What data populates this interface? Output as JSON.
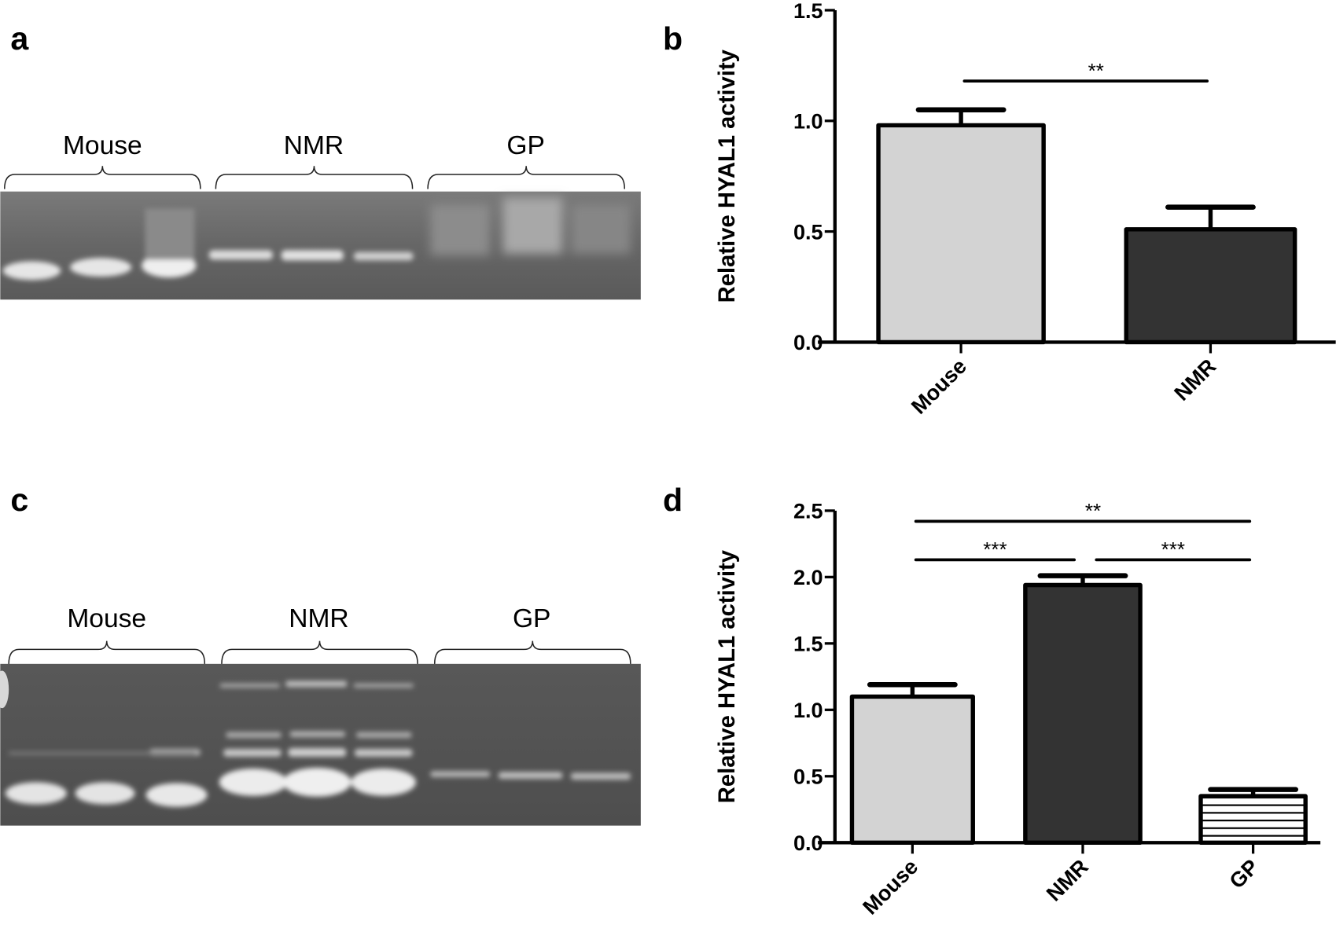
{
  "panels": {
    "a": {
      "label": "a",
      "groups": [
        "Mouse",
        "NMR",
        "GP"
      ]
    },
    "b": {
      "label": "b"
    },
    "c": {
      "label": "c",
      "groups": [
        "Mouse",
        "NMR",
        "GP"
      ]
    },
    "d": {
      "label": "d"
    }
  },
  "chart_data": [
    {
      "panel": "b",
      "type": "bar",
      "title": "",
      "xlabel": "",
      "ylabel": "Relative HYAL1 activity",
      "ylim": [
        0,
        1.5
      ],
      "yticks": [
        "0.0",
        "0.5",
        "1.0",
        "1.5"
      ],
      "categories": [
        "Mouse",
        "NMR"
      ],
      "values": [
        0.98,
        0.51
      ],
      "errors": [
        0.07,
        0.1
      ],
      "fills": [
        "#d3d3d3",
        "#333333"
      ],
      "patterns": [
        "solid",
        "solid"
      ],
      "significance": [
        {
          "from": "Mouse",
          "to": "NMR",
          "label": "**",
          "y": 1.18
        }
      ]
    },
    {
      "panel": "d",
      "type": "bar",
      "title": "",
      "xlabel": "",
      "ylabel": "Relative HYAL1 activity",
      "ylim": [
        0,
        2.5
      ],
      "yticks": [
        "0.0",
        "0.5",
        "1.0",
        "1.5",
        "2.0",
        "2.5"
      ],
      "categories": [
        "Mouse",
        "NMR",
        "GP"
      ],
      "values": [
        1.1,
        1.94,
        0.35
      ],
      "errors": [
        0.09,
        0.07,
        0.05
      ],
      "fills": [
        "#d3d3d3",
        "#333333",
        "#ffffff"
      ],
      "patterns": [
        "solid",
        "solid",
        "horizontal-stripes"
      ],
      "significance": [
        {
          "from": "Mouse",
          "to": "GP",
          "label": "**",
          "y": 2.42
        },
        {
          "from": "Mouse",
          "to": "NMR",
          "label": "***",
          "y": 2.13
        },
        {
          "from": "NMR",
          "to": "GP",
          "label": "***",
          "y": 2.13
        }
      ]
    }
  ]
}
